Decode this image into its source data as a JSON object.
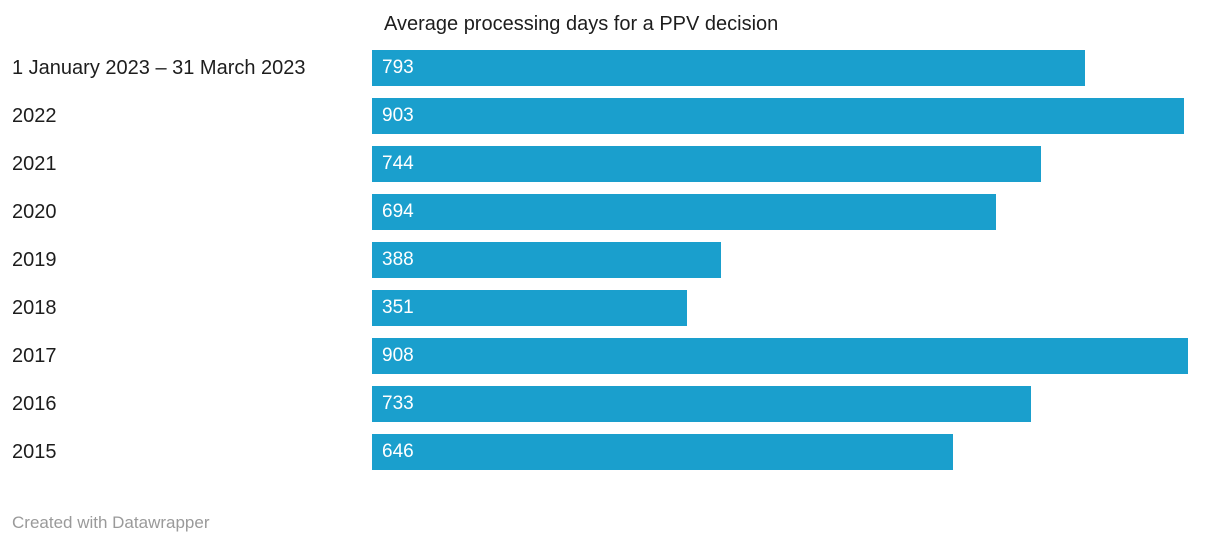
{
  "title": "Average processing days for a PPV decision",
  "footer": "Created with Datawrapper",
  "colors": {
    "bar": "#1a9fcd",
    "text": "#1d1d1d",
    "value_label": "#ffffff",
    "footer_text": "#9a9a9a",
    "background": "#ffffff"
  },
  "chart_data": {
    "type": "bar",
    "orientation": "horizontal",
    "title": "Average processing days for a PPV decision",
    "categories": [
      "1 January 2023 – 31 March 2023",
      "2022",
      "2021",
      "2020",
      "2019",
      "2018",
      "2017",
      "2016",
      "2015"
    ],
    "values": [
      793,
      903,
      744,
      694,
      388,
      351,
      908,
      733,
      646
    ],
    "xlabel": "",
    "ylabel": "",
    "xlim": [
      0,
      908
    ],
    "grid": false,
    "legend": false,
    "value_labels": "inside-start",
    "attribution": "Created with Datawrapper"
  }
}
